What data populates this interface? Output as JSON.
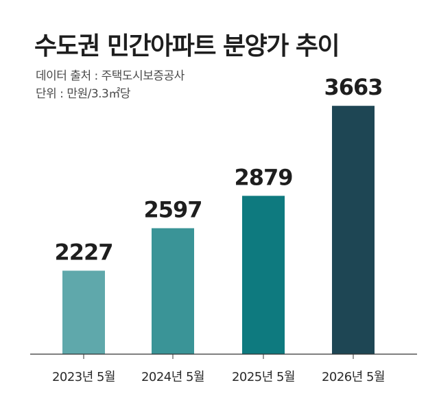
{
  "header": {
    "title": "수도권 민간아파트 분양가 추이",
    "source": "데이터 출처 : 주택도시보증공사",
    "unit": "단위 : 만원/3.3㎡당"
  },
  "colors": {
    "bars": [
      "#5fa8ab",
      "#3a9497",
      "#0e7a7f",
      "#1e4654"
    ],
    "axis": "#333333"
  },
  "chart_data": {
    "type": "bar",
    "title": "수도권 민간아파트 분양가 추이",
    "subtitle": "데이터 출처 : 주택도시보증공사",
    "ylabel": "단위 : 만원/3.3㎡당",
    "xlabel": "",
    "categories": [
      "2023년 5월",
      "2024년 5월",
      "2025년 5월",
      "2026년 5월"
    ],
    "values": [
      2227,
      2597,
      2879,
      3663
    ],
    "data_labels": [
      "2227",
      "2597",
      "2879",
      "3663"
    ],
    "ylim": [
      1500,
      3700
    ],
    "grid": false,
    "legend": "none"
  }
}
